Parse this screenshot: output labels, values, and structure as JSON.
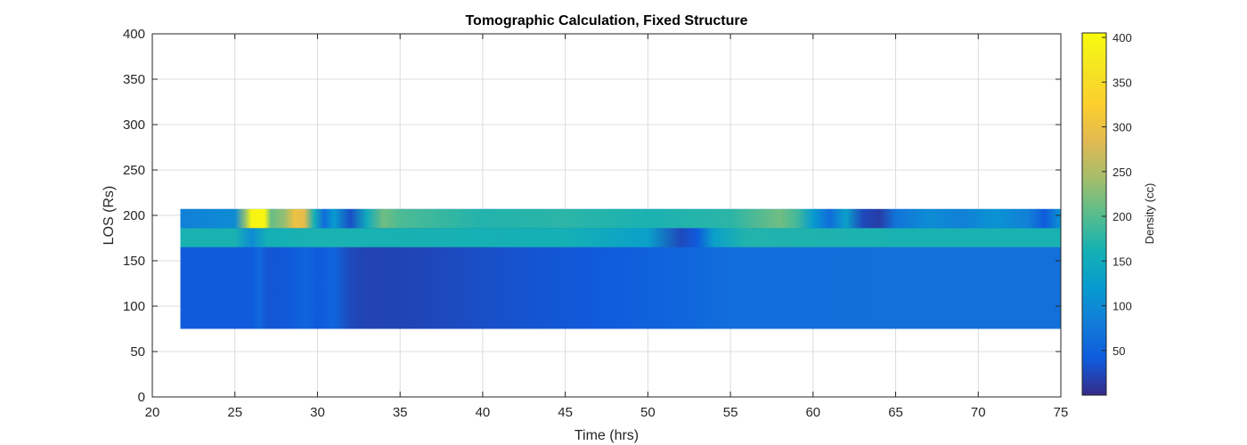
{
  "chart_data": {
    "type": "heatmap",
    "title": "Tomographic Calculation, Fixed Structure",
    "xlabel": "Time (hrs)",
    "ylabel": "LOS (Rs)",
    "xlim": [
      20,
      75
    ],
    "ylim": [
      0,
      400
    ],
    "xticks": [
      20,
      25,
      30,
      35,
      40,
      45,
      50,
      55,
      60,
      65,
      70,
      75
    ],
    "yticks": [
      0,
      50,
      100,
      150,
      200,
      250,
      300,
      350,
      400
    ],
    "grid": true,
    "colormap": "parula",
    "colorbar": {
      "label": "Density (cc)",
      "range": [
        0,
        405
      ],
      "ticks": [
        50,
        100,
        150,
        200,
        250,
        300,
        350,
        400
      ]
    },
    "x_extent": [
      21.7,
      75
    ],
    "bands": [
      {
        "y_range": [
          75,
          207
        ],
        "profile": [
          [
            21.7,
            40
          ],
          [
            26,
            40
          ],
          [
            26.5,
            55
          ],
          [
            27,
            35
          ],
          [
            28.5,
            40
          ],
          [
            29.3,
            52
          ],
          [
            30,
            40
          ],
          [
            31,
            50
          ],
          [
            32,
            25
          ],
          [
            33,
            20
          ],
          [
            36,
            22
          ],
          [
            40,
            30
          ],
          [
            47,
            40
          ],
          [
            52,
            52
          ],
          [
            55,
            62
          ],
          [
            60,
            62
          ],
          [
            65,
            65
          ],
          [
            70,
            65
          ],
          [
            75,
            65
          ]
        ]
      },
      {
        "y_range": [
          165,
          186
        ],
        "profile": [
          [
            21.7,
            165
          ],
          [
            25,
            165
          ],
          [
            26,
            100
          ],
          [
            27,
            160
          ],
          [
            30,
            165
          ],
          [
            45,
            160
          ],
          [
            50,
            130
          ],
          [
            52,
            25
          ],
          [
            53,
            40
          ],
          [
            54,
            130
          ],
          [
            56,
            170
          ],
          [
            65,
            165
          ],
          [
            75,
            165
          ]
        ]
      },
      {
        "y_range": [
          186,
          207
        ],
        "profile": [
          [
            21.7,
            85
          ],
          [
            25,
            100
          ],
          [
            25.6,
            230
          ],
          [
            26,
            395
          ],
          [
            26.8,
            395
          ],
          [
            27.2,
            210
          ],
          [
            28,
            235
          ],
          [
            28.6,
            300
          ],
          [
            29.2,
            290
          ],
          [
            29.8,
            160
          ],
          [
            30.4,
            60
          ],
          [
            31,
            120
          ],
          [
            32,
            30
          ],
          [
            33,
            150
          ],
          [
            34,
            215
          ],
          [
            35,
            195
          ],
          [
            40,
            170
          ],
          [
            45,
            175
          ],
          [
            50,
            165
          ],
          [
            55,
            175
          ],
          [
            58,
            215
          ],
          [
            59,
            190
          ],
          [
            60,
            120
          ],
          [
            61,
            60
          ],
          [
            62,
            130
          ],
          [
            63,
            25
          ],
          [
            64,
            15
          ],
          [
            65,
            70
          ],
          [
            67,
            100
          ],
          [
            69,
            85
          ],
          [
            71,
            110
          ],
          [
            73,
            85
          ],
          [
            74,
            40
          ],
          [
            75,
            110
          ]
        ]
      }
    ]
  }
}
